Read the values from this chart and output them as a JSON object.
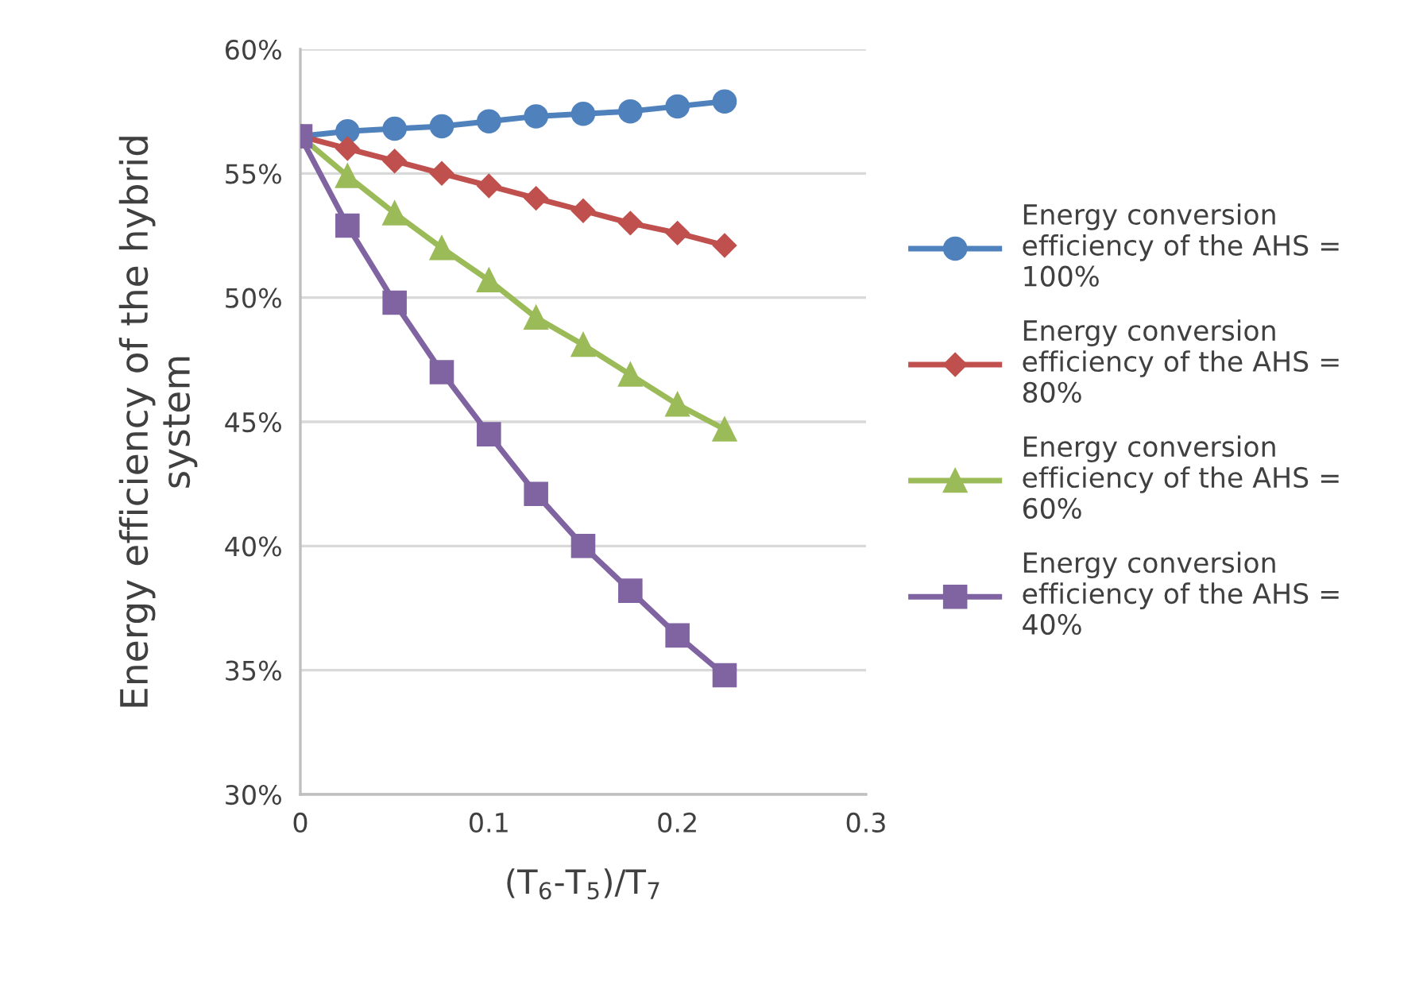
{
  "chart_data": {
    "type": "line",
    "xlabel": "(T$_{6}$-T$_{5}$)/T$_{7}$",
    "ylabel": "Energy efficiency of the hybrid\nsystem",
    "x": [
      0,
      0.025,
      0.05,
      0.075,
      0.1,
      0.125,
      0.15,
      0.175,
      0.2,
      0.225
    ],
    "series": [
      {
        "name": "Energy conversion\nefficiency of the AHS =\n100%",
        "color": "#4f81bd",
        "marker": "circle",
        "values": [
          56.5,
          56.7,
          56.8,
          56.9,
          57.1,
          57.3,
          57.4,
          57.5,
          57.7,
          57.9
        ]
      },
      {
        "name": "Energy conversion\nefficiency of the AHS =\n80%",
        "color": "#c0504d",
        "marker": "diamond",
        "values": [
          56.5,
          56.0,
          55.5,
          55.0,
          54.5,
          54.0,
          53.5,
          53.0,
          52.6,
          52.1
        ]
      },
      {
        "name": "Energy conversion\nefficiency of the AHS =\n60%",
        "color": "#9bbb59",
        "marker": "triangle",
        "values": [
          56.5,
          54.9,
          53.4,
          52.0,
          50.7,
          49.2,
          48.1,
          46.9,
          45.7,
          44.7
        ]
      },
      {
        "name": "Energy conversion\nefficiency of the AHS =\n40%",
        "color": "#8064a2",
        "marker": "square",
        "values": [
          56.5,
          52.9,
          49.8,
          47.0,
          44.5,
          42.1,
          40.0,
          38.2,
          36.4,
          34.8
        ]
      }
    ],
    "xlim": [
      0,
      0.3
    ],
    "xticks": [
      0,
      0.1,
      0.2,
      0.3
    ],
    "ylim": [
      30,
      60
    ],
    "yticks": [
      {
        "value": 30,
        "label": "30%"
      },
      {
        "value": 35,
        "label": "35%"
      },
      {
        "value": 40,
        "label": "40%"
      },
      {
        "value": 45,
        "label": "45%"
      },
      {
        "value": 50,
        "label": "50%"
      },
      {
        "value": 55,
        "label": "55%"
      },
      {
        "value": 60,
        "label": "60%"
      }
    ],
    "grid": "y",
    "legend": "right",
    "line_style": "solid"
  }
}
